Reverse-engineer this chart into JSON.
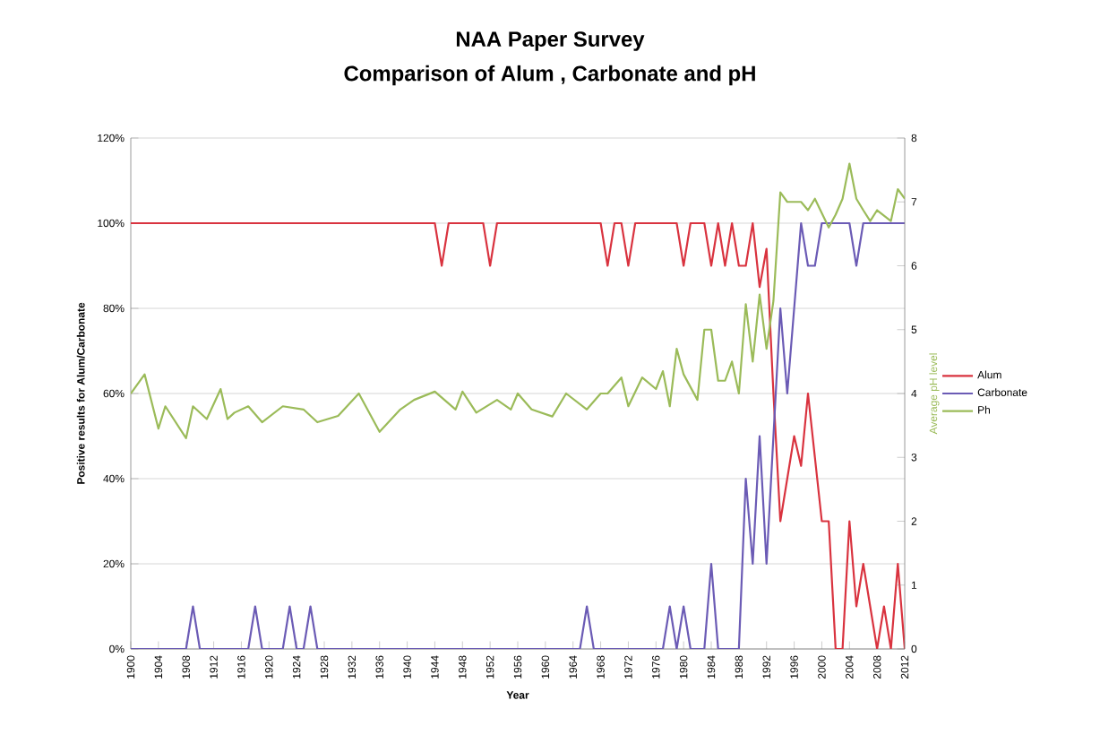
{
  "chart_data": {
    "type": "line",
    "title": "NAA Paper Survey",
    "subtitle": "Comparison of Alum , Carbonate and pH",
    "xlabel": "Year",
    "ylabel": "Positive results for Alum/Carbonate",
    "y2label": "Average pH level",
    "xlim": [
      1900,
      2012
    ],
    "xticks": [
      1900,
      1904,
      1908,
      1912,
      1916,
      1920,
      1924,
      1928,
      1932,
      1936,
      1940,
      1944,
      1948,
      1952,
      1956,
      1960,
      1964,
      1968,
      1972,
      1976,
      1980,
      1984,
      1988,
      1992,
      1996,
      2000,
      2004,
      2008,
      2012
    ],
    "ylim": [
      0,
      120
    ],
    "yticks": [
      {
        "value": 0,
        "label": "0%"
      },
      {
        "value": 20,
        "label": "20%"
      },
      {
        "value": 40,
        "label": "40%"
      },
      {
        "value": 60,
        "label": "60%"
      },
      {
        "value": 80,
        "label": "80%"
      },
      {
        "value": 100,
        "label": "100%"
      },
      {
        "value": 120,
        "label": "120%"
      }
    ],
    "y2lim": [
      0,
      8
    ],
    "y2ticks": [
      0,
      1,
      2,
      3,
      4,
      5,
      6,
      7,
      8
    ],
    "grid": "y",
    "legend": "right",
    "series": [
      {
        "name": "Alum",
        "color": "#d9333f",
        "x": [
          1900,
          1944,
          1945,
          1946,
          1951,
          1952,
          1953,
          1968,
          1969,
          1970,
          1971,
          1972,
          1973,
          1979,
          1980,
          1981,
          1983,
          1984,
          1985,
          1986,
          1987,
          1988,
          1989,
          1990,
          1991,
          1992,
          1993,
          1994,
          1995,
          1996,
          1997,
          1998,
          1999,
          2000,
          2001,
          2002,
          2003,
          2004,
          2005,
          2006,
          2007,
          2008,
          2009,
          2010,
          2011,
          2012
        ],
        "values": [
          100,
          100,
          90,
          100,
          100,
          90,
          100,
          100,
          90,
          100,
          100,
          90,
          100,
          100,
          90,
          100,
          100,
          90,
          100,
          90,
          100,
          90,
          90,
          100,
          85,
          94,
          60,
          30,
          40,
          50,
          43,
          60,
          45,
          30,
          30,
          0,
          0,
          30,
          10,
          20,
          10,
          0,
          10,
          0,
          20,
          0
        ]
      },
      {
        "name": "Carbonate",
        "color": "#6b5bb5",
        "x": [
          1900,
          1908,
          1909,
          1910,
          1917,
          1918,
          1919,
          1922,
          1923,
          1924,
          1925,
          1926,
          1927,
          1965,
          1966,
          1967,
          1977,
          1978,
          1979,
          1980,
          1981,
          1983,
          1984,
          1985,
          1988,
          1989,
          1990,
          1991,
          1992,
          1993,
          1994,
          1995,
          1996,
          1997,
          1998,
          1999,
          2000,
          2004,
          2005,
          2006,
          2012
        ],
        "values": [
          0,
          0,
          10,
          0,
          0,
          10,
          0,
          0,
          10,
          0,
          0,
          10,
          0,
          0,
          10,
          0,
          0,
          10,
          0,
          10,
          0,
          0,
          20,
          0,
          0,
          40,
          20,
          50,
          20,
          50,
          80,
          60,
          80,
          100,
          90,
          90,
          100,
          100,
          90,
          100,
          100
        ]
      },
      {
        "name": "Ph",
        "color": "#9bbb59",
        "axis": "y2",
        "x": [
          1900,
          1902,
          1904,
          1905,
          1908,
          1909,
          1911,
          1913,
          1914,
          1915,
          1917,
          1919,
          1922,
          1925,
          1927,
          1930,
          1933,
          1936,
          1939,
          1941,
          1944,
          1947,
          1948,
          1950,
          1953,
          1955,
          1956,
          1958,
          1961,
          1963,
          1966,
          1968,
          1969,
          1971,
          1972,
          1974,
          1976,
          1977,
          1978,
          1979,
          1980,
          1982,
          1983,
          1984,
          1985,
          1986,
          1987,
          1988,
          1989,
          1990,
          1991,
          1992,
          1993,
          1994,
          1995,
          1997,
          1998,
          1999,
          2001,
          2002,
          2003,
          2004,
          2005,
          2006,
          2007,
          2008,
          2010,
          2011,
          2012
        ],
        "values": [
          4.0,
          4.3,
          3.45,
          3.8,
          3.3,
          3.8,
          3.6,
          4.07,
          3.6,
          3.7,
          3.8,
          3.55,
          3.8,
          3.75,
          3.55,
          3.65,
          4.0,
          3.4,
          3.75,
          3.9,
          4.03,
          3.75,
          4.03,
          3.7,
          3.9,
          3.75,
          4.0,
          3.75,
          3.64,
          4.0,
          3.75,
          4.0,
          4.0,
          4.25,
          3.8,
          4.25,
          4.07,
          4.35,
          3.8,
          4.7,
          4.3,
          3.9,
          5.0,
          5.0,
          4.2,
          4.2,
          4.5,
          4.0,
          5.4,
          4.5,
          5.55,
          4.7,
          5.45,
          7.15,
          7.0,
          7.0,
          6.87,
          7.05,
          6.6,
          6.8,
          7.05,
          7.6,
          7.05,
          6.87,
          6.7,
          6.87,
          6.7,
          7.2,
          7.05
        ]
      }
    ]
  }
}
